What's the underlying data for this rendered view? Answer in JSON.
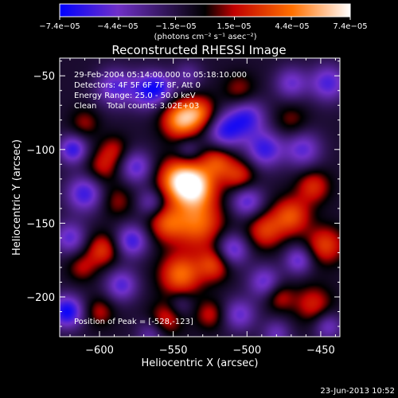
{
  "chart_data": {
    "type": "heatmap",
    "title": "Reconstructed RHESSI Image",
    "xlabel": "Heliocentric X (arcsec)",
    "ylabel": "Heliocentric Y (arcsec)",
    "xlim": [
      -627,
      -437
    ],
    "ylim": [
      -227,
      -38
    ],
    "x_ticks": [
      -600,
      -550,
      -500,
      -450
    ],
    "x_tick_labels": [
      "−600",
      "−550",
      "−500",
      "−450"
    ],
    "y_ticks": [
      -50,
      -100,
      -150,
      -200
    ],
    "y_tick_labels": [
      "−50",
      "−100",
      "−150",
      "−200"
    ],
    "colorbar": {
      "tick_labels": [
        "−7.4e−05",
        "−4.4e−05",
        "−1.5e−05",
        "1.5e−05",
        "4.4e−05",
        "7.4e−05"
      ],
      "tick_values": [
        -7.4e-05,
        -4.4e-05,
        -1.5e-05,
        1.5e-05,
        4.4e-05,
        7.4e-05
      ],
      "range": [
        -7.4e-05,
        7.4e-05
      ],
      "units_label": "(photons cm⁻² s⁻¹ asec⁻²)",
      "colors": [
        "#0000ff",
        "#7030c8",
        "#000000",
        "#c00000",
        "#ff7000",
        "#ffffff"
      ]
    },
    "info_lines": [
      "29-Feb-2004 05:14:00.000 to 05:18:10.000",
      "Detectors: 4F 5F 6F 7F 8F, Att 0",
      "Energy Range: 25.0 - 50.0 keV",
      "Clean    Total counts: 3.02E+03"
    ],
    "peak_label": "Position of Peak = [-528,-123]",
    "peak_position": [
      -528,
      -123
    ],
    "blobs": [
      {
        "x": -536,
        "y": -125,
        "v": 7.4e-05,
        "s": 10
      },
      {
        "x": -548,
        "y": -120,
        "v": 5e-05,
        "s": 10
      },
      {
        "x": -545,
        "y": -80,
        "v": 6.2e-05,
        "s": 9
      },
      {
        "x": -532,
        "y": -75,
        "v": 4.2e-05,
        "s": 8
      },
      {
        "x": -533,
        "y": -150,
        "v": 5e-05,
        "s": 12
      },
      {
        "x": -555,
        "y": -150,
        "v": 4e-05,
        "s": 9
      },
      {
        "x": -545,
        "y": -185,
        "v": 5.2e-05,
        "s": 10
      },
      {
        "x": -522,
        "y": -178,
        "v": 4e-05,
        "s": 8
      },
      {
        "x": -555,
        "y": -215,
        "v": 3.2e-05,
        "s": 8
      },
      {
        "x": -525,
        "y": -212,
        "v": 2.8e-05,
        "s": 7
      },
      {
        "x": -505,
        "y": -118,
        "v": 3.6e-05,
        "s": 8
      },
      {
        "x": -520,
        "y": -108,
        "v": 4e-05,
        "s": 8
      },
      {
        "x": -488,
        "y": -155,
        "v": 3.8e-05,
        "s": 9
      },
      {
        "x": -470,
        "y": -145,
        "v": 4.4e-05,
        "s": 9
      },
      {
        "x": -455,
        "y": -125,
        "v": 3.5e-05,
        "s": 8
      },
      {
        "x": -447,
        "y": -165,
        "v": 4e-05,
        "s": 9
      },
      {
        "x": -455,
        "y": -205,
        "v": 3.2e-05,
        "s": 9
      },
      {
        "x": -478,
        "y": -200,
        "v": 2.8e-05,
        "s": 7
      },
      {
        "x": -598,
        "y": -112,
        "v": 2.8e-05,
        "s": 8
      },
      {
        "x": -588,
        "y": -135,
        "v": 2.2e-05,
        "s": 8
      },
      {
        "x": -598,
        "y": -168,
        "v": 3.8e-05,
        "s": 8
      },
      {
        "x": -612,
        "y": -180,
        "v": 2.4e-05,
        "s": 7
      },
      {
        "x": -610,
        "y": -82,
        "v": 2.2e-05,
        "s": 7
      },
      {
        "x": -590,
        "y": -100,
        "v": 2.4e-05,
        "s": 7
      },
      {
        "x": -505,
        "y": -60,
        "v": 2.4e-05,
        "s": 8
      },
      {
        "x": -470,
        "y": -80,
        "v": 2e-05,
        "s": 8
      },
      {
        "x": -600,
        "y": -210,
        "v": 2.6e-05,
        "s": 7
      },
      {
        "x": -568,
        "y": -60,
        "v": -4.5e-05,
        "s": 9
      },
      {
        "x": -558,
        "y": -58,
        "v": -3e-05,
        "s": 7
      },
      {
        "x": -590,
        "y": -58,
        "v": -4e-05,
        "s": 9
      },
      {
        "x": -618,
        "y": -100,
        "v": -5e-05,
        "s": 7
      },
      {
        "x": -610,
        "y": -130,
        "v": -4.8e-05,
        "s": 9
      },
      {
        "x": -620,
        "y": -160,
        "v": -4e-05,
        "s": 8
      },
      {
        "x": -622,
        "y": -210,
        "v": -6e-05,
        "s": 8
      },
      {
        "x": -585,
        "y": -192,
        "v": -4.2e-05,
        "s": 8
      },
      {
        "x": -578,
        "y": -162,
        "v": -4.8e-05,
        "s": 8
      },
      {
        "x": -575,
        "y": -112,
        "v": -4.2e-05,
        "s": 8
      },
      {
        "x": -565,
        "y": -136,
        "v": -3.2e-05,
        "s": 7
      },
      {
        "x": -515,
        "y": -88,
        "v": -4.8e-05,
        "s": 9
      },
      {
        "x": -500,
        "y": -78,
        "v": -4.6e-05,
        "s": 9
      },
      {
        "x": -488,
        "y": -100,
        "v": -4.8e-05,
        "s": 9
      },
      {
        "x": -462,
        "y": -100,
        "v": -4e-05,
        "s": 9
      },
      {
        "x": -445,
        "y": -55,
        "v": -4.4e-05,
        "s": 9
      },
      {
        "x": -470,
        "y": -55,
        "v": -3.6e-05,
        "s": 8
      },
      {
        "x": -500,
        "y": -135,
        "v": -4.4e-05,
        "s": 8
      },
      {
        "x": -510,
        "y": -168,
        "v": -4.6e-05,
        "s": 8
      },
      {
        "x": -488,
        "y": -190,
        "v": -4e-05,
        "s": 8
      },
      {
        "x": -465,
        "y": -175,
        "v": -4e-05,
        "s": 7
      },
      {
        "x": -505,
        "y": -212,
        "v": -3.8e-05,
        "s": 8
      },
      {
        "x": -540,
        "y": -100,
        "v": -2.2e-05,
        "s": 6
      },
      {
        "x": -545,
        "y": -205,
        "v": -2e-05,
        "s": 6
      },
      {
        "x": -445,
        "y": -220,
        "v": -3.4e-05,
        "s": 7
      },
      {
        "x": -480,
        "y": -225,
        "v": -3e-05,
        "s": 7
      },
      {
        "x": -565,
        "y": -225,
        "v": -2.8e-05,
        "s": 7
      },
      {
        "x": -540,
        "y": -50,
        "v": -2.4e-05,
        "s": 7
      }
    ]
  },
  "footer": {
    "date": "23-Jun-2013 10:52"
  }
}
